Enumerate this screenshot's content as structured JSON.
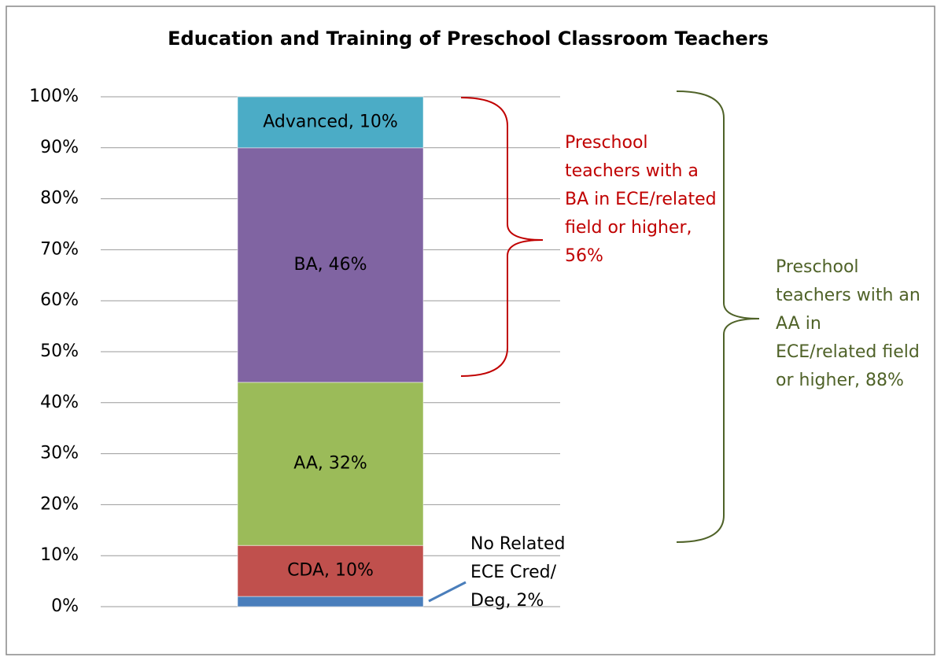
{
  "chart_data": {
    "type": "stacked_bar",
    "title": "Education and Training of Preschool Classroom Teachers",
    "categories": [
      null
    ],
    "series": [
      {
        "name": "No Related ECE Cred/Deg",
        "color": "#4a7ebb",
        "values": [
          2
        ],
        "value_labels": [
          "No Related ECE Cred/ Deg, 2%"
        ]
      },
      {
        "name": "CDA",
        "color": "#c0504d",
        "values": [
          10
        ],
        "value_labels": [
          "CDA, 10%"
        ]
      },
      {
        "name": "AA",
        "color": "#9bbb59",
        "values": [
          32
        ],
        "value_labels": [
          "AA, 32%"
        ]
      },
      {
        "name": "BA",
        "color": "#8064a2",
        "values": [
          46
        ],
        "value_labels": [
          "BA, 46%"
        ]
      },
      {
        "name": "Advanced",
        "color": "#4bacc6",
        "values": [
          10
        ],
        "value_labels": [
          "Advanced, 10%"
        ]
      }
    ],
    "ylim": [
      0,
      100
    ],
    "yticks": [
      {
        "value": 0,
        "label": "0%"
      },
      {
        "value": 10,
        "label": "10%"
      },
      {
        "value": 20,
        "label": "20%"
      },
      {
        "value": 30,
        "label": "30%"
      },
      {
        "value": 40,
        "label": "40%"
      },
      {
        "value": 50,
        "label": "50%"
      },
      {
        "value": 60,
        "label": "60%"
      },
      {
        "value": 70,
        "label": "70%"
      },
      {
        "value": 80,
        "label": "80%"
      },
      {
        "value": 90,
        "label": "90%"
      },
      {
        "value": 100,
        "label": "100%"
      }
    ],
    "grid": true,
    "annotations": [
      {
        "text": "Preschool teachers with a BA in ECE/related field or higher, 56%",
        "color": "#c00000"
      },
      {
        "text": "Preschool teachers with an AA in ECE/related field or higher, 88%",
        "color": "#4f6228"
      }
    ]
  }
}
